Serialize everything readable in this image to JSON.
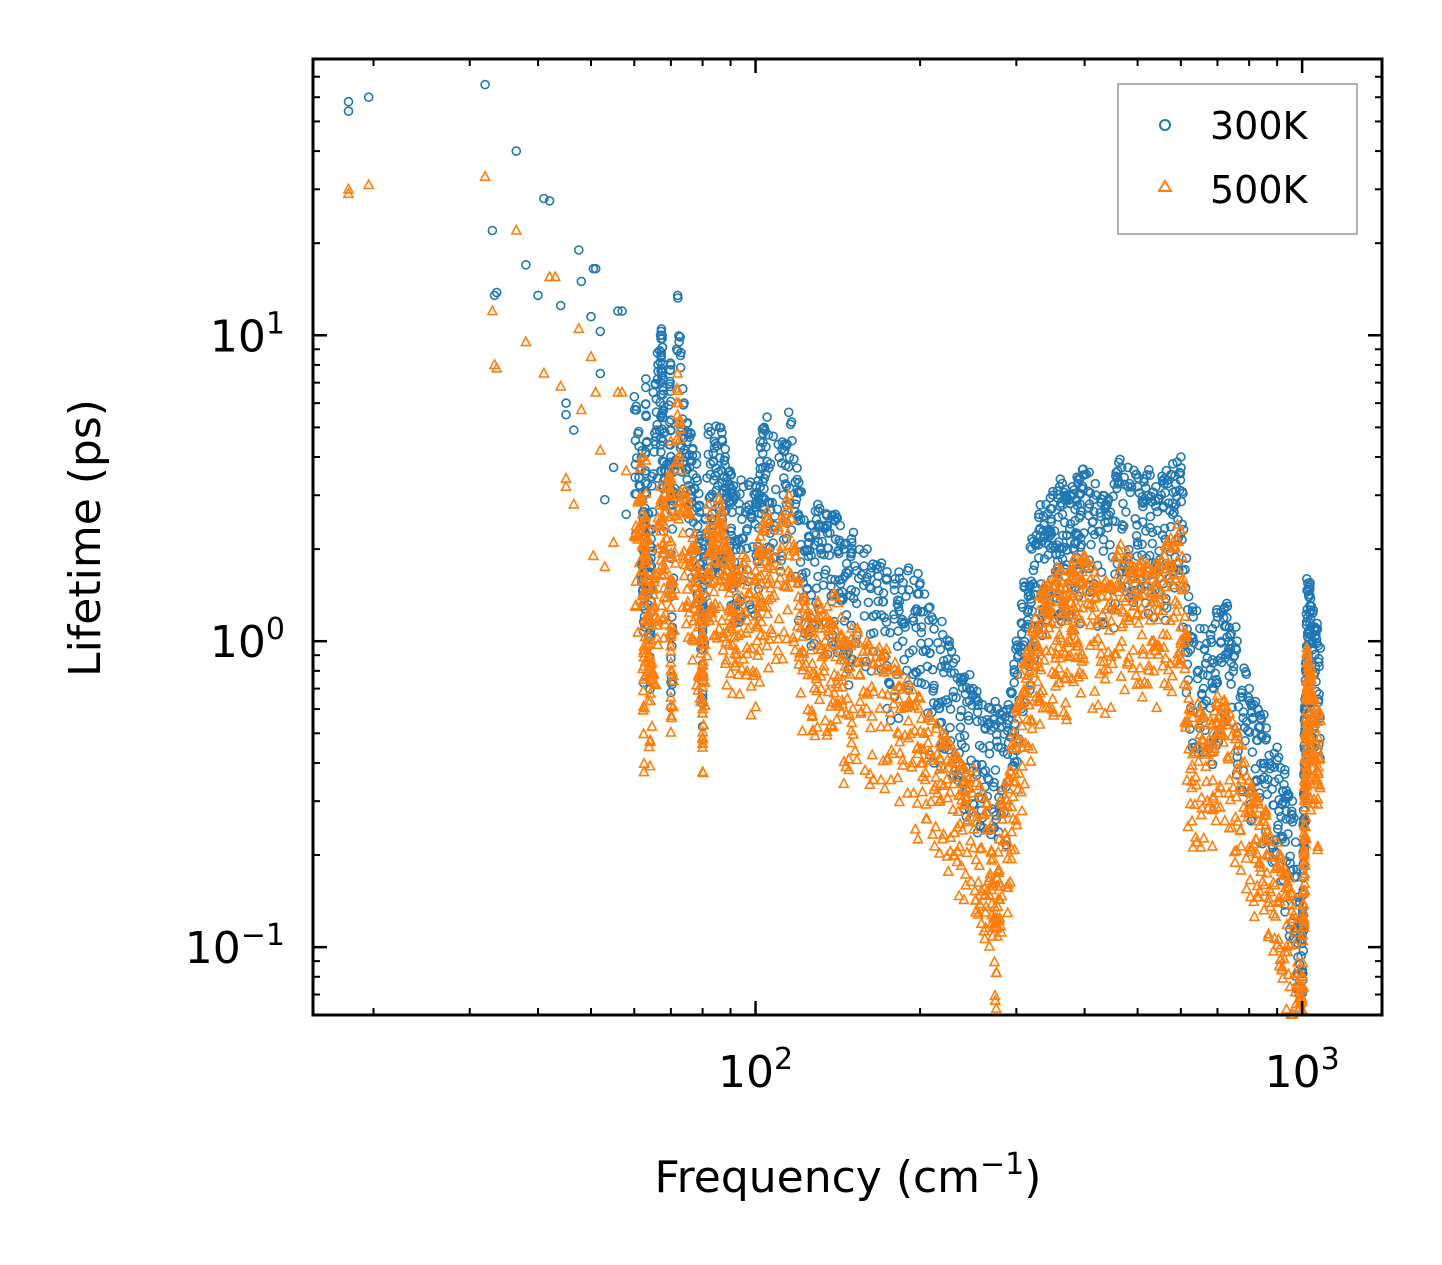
{
  "chart_data": {
    "type": "scatter",
    "title": "",
    "xlabel": "Frequency (cm",
    "xlabel_sup": "−1",
    "xlabel_end": ")",
    "ylabel": "Lifetime (ps)",
    "xscale": "log",
    "yscale": "log",
    "xlim": [
      15.5,
      1400
    ],
    "ylim": [
      0.06,
      80
    ],
    "x_ticks": [
      {
        "value": 100,
        "base": "10",
        "exp": "2"
      },
      {
        "value": 1000,
        "base": "10",
        "exp": "3"
      }
    ],
    "y_ticks": [
      {
        "value": 0.1,
        "base": "10",
        "exp": "−1"
      },
      {
        "value": 1,
        "base": "10",
        "exp": "0"
      },
      {
        "value": 10,
        "base": "10",
        "exp": "1"
      }
    ],
    "legend_position": "top-right",
    "series": [
      {
        "name": "300K",
        "marker": "circle",
        "color": "#1f77b4",
        "points": [
          [
            18,
            58
          ],
          [
            18,
            54
          ],
          [
            19.6,
            60
          ],
          [
            32,
            66
          ],
          [
            33,
            22
          ],
          [
            33.3,
            13.5
          ],
          [
            33.6,
            13.8
          ],
          [
            36.5,
            40
          ],
          [
            38,
            17
          ],
          [
            40,
            13.5
          ],
          [
            41,
            28
          ],
          [
            42,
            27.5
          ],
          [
            44,
            12.5
          ],
          [
            45,
            6
          ],
          [
            45,
            5.5
          ],
          [
            46.5,
            4.9
          ],
          [
            47.5,
            19
          ],
          [
            48,
            15
          ],
          [
            50,
            11.5
          ],
          [
            50.5,
            16.5
          ],
          [
            51,
            16.5
          ],
          [
            52,
            10.3
          ],
          [
            52,
            7.5
          ],
          [
            53,
            2.9
          ],
          [
            55,
            3.7
          ],
          [
            56,
            12
          ],
          [
            57,
            12
          ],
          [
            58,
            2.6
          ],
          [
            60,
            6.3
          ],
          [
            62,
            4.2
          ],
          [
            62.5,
            1.65
          ],
          [
            63,
            7.2
          ],
          [
            64,
            1.5
          ],
          [
            65,
            6.5
          ],
          [
            67,
            10
          ],
          [
            67.5,
            10
          ],
          [
            68,
            4.8
          ],
          [
            70,
            8
          ],
          [
            70,
            1.4
          ],
          [
            72,
            13.5
          ],
          [
            74,
            6
          ],
          [
            76,
            4.8
          ],
          [
            78,
            3.8
          ],
          [
            80,
            2
          ],
          [
            80,
            1.5
          ],
          [
            82,
            5
          ],
          [
            84,
            4.5
          ],
          [
            86,
            5
          ],
          [
            88,
            4
          ],
          [
            90,
            3.5
          ],
          [
            92,
            3
          ],
          [
            95,
            3.2
          ],
          [
            100,
            3
          ],
          [
            102,
            4.5
          ],
          [
            105,
            5.4
          ],
          [
            110,
            4.4
          ],
          [
            115,
            5.6
          ],
          [
            120,
            3.3
          ],
          [
            125,
            2.2
          ],
          [
            130,
            2.8
          ],
          [
            135,
            2.4
          ],
          [
            140,
            2.6
          ],
          [
            145,
            2
          ],
          [
            150,
            2.1
          ],
          [
            160,
            2
          ],
          [
            170,
            1.8
          ],
          [
            180,
            1.6
          ],
          [
            190,
            1.7
          ],
          [
            200,
            1.55
          ],
          [
            210,
            1.2
          ],
          [
            220,
            1.05
          ],
          [
            230,
            0.85
          ],
          [
            240,
            0.75
          ],
          [
            250,
            0.7
          ],
          [
            260,
            0.62
          ],
          [
            270,
            0.6
          ],
          [
            280,
            0.58
          ],
          [
            290,
            0.62
          ],
          [
            300,
            1
          ],
          [
            310,
            1.5
          ],
          [
            320,
            2
          ],
          [
            330,
            2.6
          ],
          [
            340,
            2.8
          ],
          [
            350,
            3
          ],
          [
            360,
            3.2
          ],
          [
            370,
            3
          ],
          [
            380,
            3.2
          ],
          [
            390,
            3.4
          ],
          [
            400,
            3.5
          ],
          [
            420,
            3
          ],
          [
            440,
            2.8
          ],
          [
            460,
            3.6
          ],
          [
            480,
            3.7
          ],
          [
            500,
            3.2
          ],
          [
            520,
            3.5
          ],
          [
            540,
            3.2
          ],
          [
            560,
            3.4
          ],
          [
            580,
            3.8
          ],
          [
            600,
            4
          ],
          [
            620,
            1.4
          ],
          [
            650,
            1.1
          ],
          [
            680,
            1.05
          ],
          [
            700,
            1.2
          ],
          [
            730,
            1.3
          ],
          [
            760,
            1.0
          ],
          [
            800,
            0.7
          ],
          [
            830,
            0.6
          ],
          [
            860,
            0.52
          ],
          [
            900,
            0.45
          ],
          [
            930,
            0.38
          ],
          [
            960,
            0.3
          ],
          [
            990,
            0.14
          ],
          [
            1000,
            0.11
          ],
          [
            1005,
            0.25
          ],
          [
            1010,
            0.55
          ],
          [
            1015,
            0.8
          ],
          [
            1020,
            1.6
          ],
          [
            1030,
            1.5
          ],
          [
            1040,
            1.3
          ],
          [
            1060,
            1.1
          ],
          [
            1080,
            0.95
          ]
        ]
      },
      {
        "name": "500K",
        "marker": "triangle",
        "color": "#ff7f0e",
        "points": [
          [
            18,
            30
          ],
          [
            18,
            29
          ],
          [
            19.6,
            31
          ],
          [
            32,
            33
          ],
          [
            33,
            12
          ],
          [
            33.3,
            8
          ],
          [
            33.6,
            7.8
          ],
          [
            36.5,
            22
          ],
          [
            38,
            9.5
          ],
          [
            41,
            7.5
          ],
          [
            42,
            15.5
          ],
          [
            43,
            15.5
          ],
          [
            44,
            6.8
          ],
          [
            45,
            3.4
          ],
          [
            45,
            3.2
          ],
          [
            46.5,
            2.8
          ],
          [
            47.5,
            10.5
          ],
          [
            48,
            5.7
          ],
          [
            50,
            8.5
          ],
          [
            50.5,
            1.9
          ],
          [
            51,
            6.5
          ],
          [
            52,
            4.2
          ],
          [
            53,
            1.75
          ],
          [
            55,
            2.1
          ],
          [
            56,
            6.5
          ],
          [
            57,
            6.5
          ],
          [
            58,
            3.6
          ],
          [
            60,
            2.2
          ],
          [
            62,
            4
          ],
          [
            62.5,
            0.96
          ],
          [
            63,
            3.9
          ],
          [
            64,
            0.9
          ],
          [
            65,
            1.5
          ],
          [
            67,
            3.2
          ],
          [
            68,
            2.8
          ],
          [
            70,
            4.5
          ],
          [
            70,
            0.85
          ],
          [
            72,
            7.5
          ],
          [
            74,
            3
          ],
          [
            76,
            2.6
          ],
          [
            78,
            2
          ],
          [
            80,
            1.2
          ],
          [
            80,
            0.78
          ],
          [
            82,
            2.8
          ],
          [
            84,
            2.2
          ],
          [
            86,
            2.8
          ],
          [
            88,
            2.2
          ],
          [
            90,
            1.9
          ],
          [
            92,
            1.7
          ],
          [
            95,
            1.8
          ],
          [
            100,
            1.7
          ],
          [
            102,
            2.2
          ],
          [
            105,
            2.5
          ],
          [
            110,
            2.3
          ],
          [
            115,
            3
          ],
          [
            120,
            1.6
          ],
          [
            125,
            1.2
          ],
          [
            130,
            1.35
          ],
          [
            135,
            1.2
          ],
          [
            140,
            1.4
          ],
          [
            145,
            1
          ],
          [
            150,
            1.1
          ],
          [
            160,
            1
          ],
          [
            170,
            0.9
          ],
          [
            180,
            0.85
          ],
          [
            190,
            0.7
          ],
          [
            200,
            0.65
          ],
          [
            210,
            0.55
          ],
          [
            220,
            0.5
          ],
          [
            230,
            0.42
          ],
          [
            240,
            0.38
          ],
          [
            250,
            0.36
          ],
          [
            260,
            0.32
          ],
          [
            270,
            0.25
          ],
          [
            275,
            0.12
          ],
          [
            280,
            0.3
          ],
          [
            290,
            0.35
          ],
          [
            300,
            0.6
          ],
          [
            310,
            0.85
          ],
          [
            320,
            1.1
          ],
          [
            330,
            1.4
          ],
          [
            340,
            1.5
          ],
          [
            350,
            1.6
          ],
          [
            360,
            1.7
          ],
          [
            370,
            1.5
          ],
          [
            380,
            1.7
          ],
          [
            390,
            1.8
          ],
          [
            400,
            1.9
          ],
          [
            420,
            1.6
          ],
          [
            440,
            1.5
          ],
          [
            460,
            1.9
          ],
          [
            480,
            1.95
          ],
          [
            500,
            1.7
          ],
          [
            520,
            1.8
          ],
          [
            540,
            1.7
          ],
          [
            560,
            1.9
          ],
          [
            580,
            2.1
          ],
          [
            600,
            2.3
          ],
          [
            620,
            0.65
          ],
          [
            650,
            0.58
          ],
          [
            680,
            0.55
          ],
          [
            700,
            0.62
          ],
          [
            730,
            0.6
          ],
          [
            760,
            0.5
          ],
          [
            800,
            0.35
          ],
          [
            830,
            0.3
          ],
          [
            860,
            0.27
          ],
          [
            900,
            0.22
          ],
          [
            930,
            0.18
          ],
          [
            960,
            0.15
          ],
          [
            990,
            0.075
          ],
          [
            1000,
            0.068
          ],
          [
            1005,
            0.15
          ],
          [
            1010,
            0.35
          ],
          [
            1015,
            0.5
          ],
          [
            1020,
            0.95
          ],
          [
            1030,
            0.85
          ],
          [
            1040,
            0.75
          ],
          [
            1060,
            0.6
          ],
          [
            1080,
            0.55
          ]
        ]
      }
    ]
  }
}
